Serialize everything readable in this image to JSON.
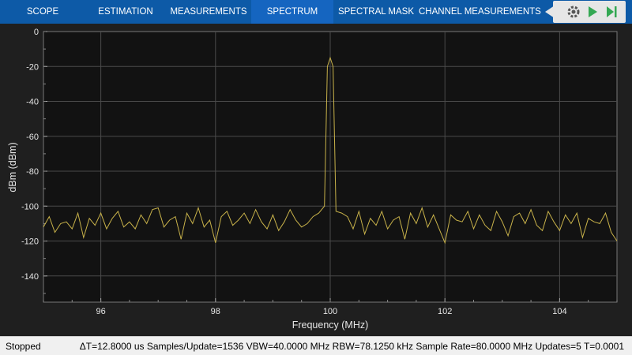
{
  "toolstrip": {
    "tabs": [
      {
        "label": "SCOPE",
        "active": false
      },
      {
        "label": "ESTIMATION",
        "active": false
      },
      {
        "label": "MEASUREMENTS",
        "active": false
      },
      {
        "label": "SPECTRUM",
        "active": true
      },
      {
        "label": "SPECTRAL MASK",
        "active": false
      },
      {
        "label": "CHANNEL MEASUREMENTS",
        "active": false
      }
    ],
    "controls": [
      {
        "icon": "settings-icon",
        "label": "settings"
      },
      {
        "icon": "run-icon",
        "label": "run"
      },
      {
        "icon": "step-forward-icon",
        "label": "step forward"
      }
    ],
    "colors": {
      "background": "#0d5aa7",
      "active_tab": "#1565c0"
    }
  },
  "status": {
    "state": "Stopped",
    "details": "ΔT=12.8000 us  Samples/Update=1536  VBW=40.0000 MHz  RBW=78.1250 kHz  Sample Rate=80.0000 MHz  Updates=5  T=0.0001"
  },
  "chart_data": {
    "type": "line",
    "xlabel": "Frequency (MHz)",
    "ylabel": "dBm (dBm)",
    "xlim": [
      95,
      105
    ],
    "ylim": [
      -155,
      0
    ],
    "xticks": [
      96,
      98,
      100,
      102,
      104
    ],
    "yticks": [
      0,
      -20,
      -40,
      -60,
      -80,
      -100,
      -120,
      -140
    ],
    "grid": true,
    "colors": {
      "trace": "#c8b24a",
      "plot_bg": "#121212",
      "figure_bg": "#1f1f1f",
      "grid": "#4a4a4a"
    },
    "series": [
      {
        "x": [
          95.0,
          95.1,
          95.2,
          95.3,
          95.4,
          95.5,
          95.6,
          95.7,
          95.8,
          95.9,
          96.0,
          96.1,
          96.2,
          96.3,
          96.4,
          96.5,
          96.6,
          96.7,
          96.8,
          96.9,
          97.0,
          97.1,
          97.2,
          97.3,
          97.4,
          97.5,
          97.6,
          97.7,
          97.8,
          97.9,
          98.0,
          98.1,
          98.2,
          98.3,
          98.4,
          98.5,
          98.6,
          98.7,
          98.8,
          98.9,
          99.0,
          99.1,
          99.2,
          99.3,
          99.4,
          99.5,
          99.6,
          99.7,
          99.8,
          99.9,
          99.95,
          100.0,
          100.05,
          100.1,
          100.2,
          100.3,
          100.4,
          100.5,
          100.6,
          100.7,
          100.8,
          100.9,
          101.0,
          101.1,
          101.2,
          101.3,
          101.4,
          101.5,
          101.6,
          101.7,
          101.8,
          101.9,
          102.0,
          102.1,
          102.2,
          102.3,
          102.4,
          102.5,
          102.6,
          102.7,
          102.8,
          102.9,
          103.0,
          103.1,
          103.2,
          103.3,
          103.4,
          103.5,
          103.6,
          103.7,
          103.8,
          103.9,
          104.0,
          104.1,
          104.2,
          104.3,
          104.4,
          104.5,
          104.6,
          104.7,
          104.8,
          104.9,
          105.0
        ],
        "y": [
          -112,
          -106,
          -115,
          -110,
          -109,
          -113,
          -104,
          -118,
          -107,
          -111,
          -104,
          -113,
          -107,
          -103,
          -112,
          -109,
          -113,
          -105,
          -110,
          -102,
          -101,
          -112,
          -108,
          -106,
          -119,
          -104,
          -110,
          -101,
          -112,
          -108,
          -121,
          -106,
          -103,
          -111,
          -108,
          -104,
          -110,
          -102,
          -109,
          -113,
          -105,
          -114,
          -109,
          -102,
          -108,
          -112,
          -110,
          -106,
          -104,
          -100,
          -20,
          -15,
          -20,
          -103,
          -104,
          -106,
          -113,
          -103,
          -116,
          -107,
          -111,
          -103,
          -113,
          -108,
          -106,
          -119,
          -104,
          -110,
          -101,
          -112,
          -105,
          -113,
          -121,
          -105,
          -108,
          -109,
          -103,
          -113,
          -105,
          -111,
          -114,
          -103,
          -109,
          -117,
          -106,
          -104,
          -110,
          -102,
          -111,
          -114,
          -103,
          -109,
          -114,
          -105,
          -110,
          -104,
          -118,
          -107,
          -109,
          -110,
          -104,
          -115,
          -120
        ]
      }
    ]
  }
}
